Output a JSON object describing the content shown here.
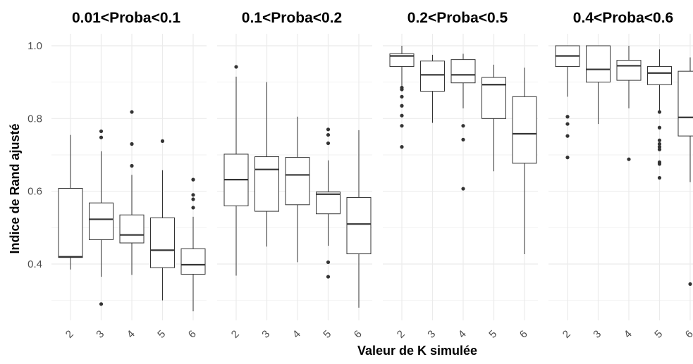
{
  "chart_data": {
    "type": "boxplot",
    "xlabel": "Valeur de K simulée",
    "ylabel": "Indice de Rand ajusté",
    "y_ticks": [
      0.4,
      0.6,
      0.8,
      1.0
    ],
    "y_tick_labels": [
      "0.4",
      "0.6",
      "0.8",
      "1.0"
    ],
    "ylim": [
      0.25,
      1.04
    ],
    "grid": true,
    "panels": [
      {
        "title": "0.01<Proba<0.1",
        "categories": [
          "2",
          "3",
          "4",
          "5",
          "6"
        ],
        "boxes": [
          {
            "k": "2",
            "lower_whisker": 0.385,
            "q1": 0.418,
            "median": 0.42,
            "q3": 0.608,
            "upper_whisker": 0.755,
            "outliers": []
          },
          {
            "k": "3",
            "lower_whisker": 0.365,
            "q1": 0.467,
            "median": 0.523,
            "q3": 0.568,
            "upper_whisker": 0.71,
            "outliers": [
              0.765,
              0.748,
              0.29
            ]
          },
          {
            "k": "4",
            "lower_whisker": 0.37,
            "q1": 0.458,
            "median": 0.48,
            "q3": 0.535,
            "upper_whisker": 0.645,
            "outliers": [
              0.818,
              0.73,
              0.67
            ]
          },
          {
            "k": "5",
            "lower_whisker": 0.3,
            "q1": 0.39,
            "median": 0.438,
            "q3": 0.527,
            "upper_whisker": 0.658,
            "outliers": [
              0.738
            ]
          },
          {
            "k": "6",
            "lower_whisker": 0.27,
            "q1": 0.372,
            "median": 0.398,
            "q3": 0.442,
            "upper_whisker": 0.53,
            "outliers": [
              0.632,
              0.59,
              0.578,
              0.555
            ]
          }
        ]
      },
      {
        "title": "0.1<Proba<0.2",
        "categories": [
          "2",
          "3",
          "4",
          "5",
          "6"
        ],
        "boxes": [
          {
            "k": "2",
            "lower_whisker": 0.368,
            "q1": 0.56,
            "median": 0.632,
            "q3": 0.702,
            "upper_whisker": 0.915,
            "outliers": [
              0.942
            ]
          },
          {
            "k": "3",
            "lower_whisker": 0.448,
            "q1": 0.545,
            "median": 0.66,
            "q3": 0.695,
            "upper_whisker": 0.9,
            "outliers": []
          },
          {
            "k": "4",
            "lower_whisker": 0.405,
            "q1": 0.563,
            "median": 0.645,
            "q3": 0.693,
            "upper_whisker": 0.805,
            "outliers": []
          },
          {
            "k": "5",
            "lower_whisker": 0.45,
            "q1": 0.538,
            "median": 0.592,
            "q3": 0.598,
            "upper_whisker": 0.685,
            "outliers": [
              0.77,
              0.755,
              0.732,
              0.405,
              0.365
            ]
          },
          {
            "k": "6",
            "lower_whisker": 0.28,
            "q1": 0.428,
            "median": 0.51,
            "q3": 0.583,
            "upper_whisker": 0.768,
            "outliers": []
          }
        ]
      },
      {
        "title": "0.2<Proba<0.5",
        "categories": [
          "2",
          "3",
          "4",
          "5",
          "6"
        ],
        "boxes": [
          {
            "k": "2",
            "lower_whisker": 0.885,
            "q1": 0.943,
            "median": 0.972,
            "q3": 0.978,
            "upper_whisker": 1.0,
            "outliers": [
              0.885,
              0.88,
              0.86,
              0.835,
              0.808,
              0.78,
              0.722
            ]
          },
          {
            "k": "3",
            "lower_whisker": 0.788,
            "q1": 0.875,
            "median": 0.92,
            "q3": 0.958,
            "upper_whisker": 0.975,
            "outliers": []
          },
          {
            "k": "4",
            "lower_whisker": 0.828,
            "q1": 0.898,
            "median": 0.92,
            "q3": 0.962,
            "upper_whisker": 0.978,
            "outliers": [
              0.78,
              0.742,
              0.607
            ]
          },
          {
            "k": "5",
            "lower_whisker": 0.655,
            "q1": 0.8,
            "median": 0.893,
            "q3": 0.913,
            "upper_whisker": 0.948,
            "outliers": []
          },
          {
            "k": "6",
            "lower_whisker": 0.427,
            "q1": 0.677,
            "median": 0.758,
            "q3": 0.86,
            "upper_whisker": 0.94,
            "outliers": []
          }
        ]
      },
      {
        "title": "0.4<Proba<0.6",
        "categories": [
          "2",
          "3",
          "4",
          "5",
          "6"
        ],
        "boxes": [
          {
            "k": "2",
            "lower_whisker": 0.86,
            "q1": 0.943,
            "median": 0.972,
            "q3": 1.0,
            "upper_whisker": 1.0,
            "outliers": [
              0.805,
              0.785,
              0.752,
              0.693
            ]
          },
          {
            "k": "3",
            "lower_whisker": 0.785,
            "q1": 0.9,
            "median": 0.935,
            "q3": 1.0,
            "upper_whisker": 1.0,
            "outliers": []
          },
          {
            "k": "4",
            "lower_whisker": 0.828,
            "q1": 0.905,
            "median": 0.945,
            "q3": 0.96,
            "upper_whisker": 1.0,
            "outliers": [
              0.688
            ]
          },
          {
            "k": "5",
            "lower_whisker": 0.822,
            "q1": 0.893,
            "median": 0.925,
            "q3": 0.943,
            "upper_whisker": 0.99,
            "outliers": [
              0.818,
              0.775,
              0.74,
              0.73,
              0.722,
              0.715,
              0.68,
              0.675,
              0.637
            ]
          },
          {
            "k": "6",
            "lower_whisker": 0.625,
            "q1": 0.752,
            "median": 0.803,
            "q3": 0.93,
            "upper_whisker": 0.968,
            "outliers": [
              0.345
            ]
          }
        ]
      }
    ]
  }
}
